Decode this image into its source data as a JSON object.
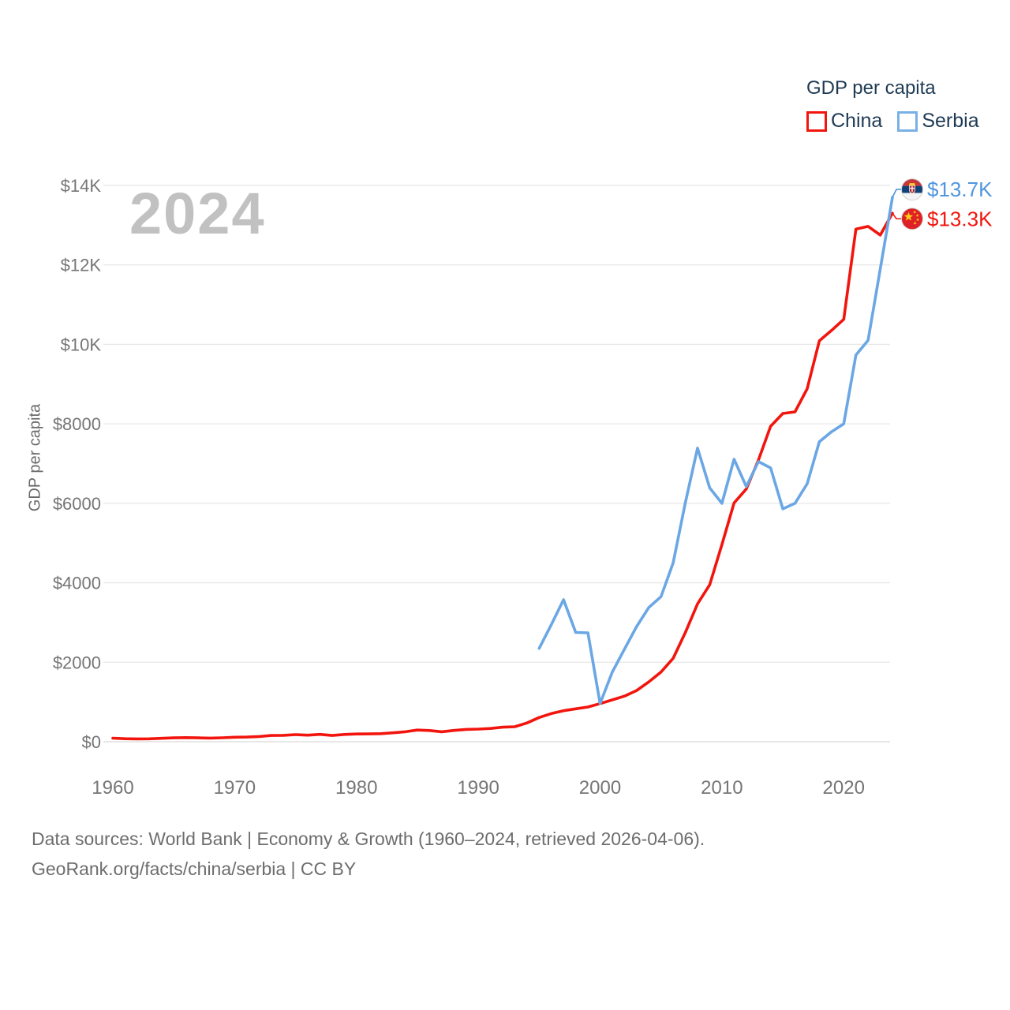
{
  "legend": {
    "title": "GDP per capita",
    "items": [
      {
        "label": "China",
        "color": "#f2150d"
      },
      {
        "label": "Serbia",
        "color": "#79b1e6"
      }
    ]
  },
  "watermark": "2024",
  "y_axis": {
    "title": "GDP per capita",
    "tick_labels": [
      "$0",
      "$2000",
      "$4000",
      "$6000",
      "$8000",
      "$10K",
      "$12K",
      "$14K"
    ],
    "tick_values": [
      0,
      2000,
      4000,
      6000,
      8000,
      10000,
      12000,
      14000
    ]
  },
  "x_axis": {
    "tick_labels": [
      "1960",
      "1970",
      "1980",
      "1990",
      "2000",
      "2010",
      "2020"
    ],
    "tick_values": [
      1960,
      1970,
      1980,
      1990,
      2000,
      2010,
      2020
    ]
  },
  "end_labels": [
    {
      "series": "Serbia",
      "value_label": "$13.7K",
      "color": "#4f96de",
      "flag": "serbia-flag"
    },
    {
      "series": "China",
      "value_label": "$13.3K",
      "color": "#f2150d",
      "flag": "china-flag"
    }
  ],
  "footer": {
    "line1": "Data sources: World Bank | Economy & Growth (1960–2024, retrieved 2026-04-06).",
    "line2": "GeoRank.org/facts/china/serbia | CC BY"
  },
  "chart_data": {
    "type": "line",
    "title": "GDP per capita",
    "ylabel": "GDP per capita",
    "ylim": [
      0,
      14000
    ],
    "xlim": [
      1960,
      2024
    ],
    "grid": "horizontal",
    "legend_position": "top-right",
    "series": [
      {
        "name": "China",
        "color": "#f2150d",
        "start_year": 1960,
        "x_step": 1,
        "values": [
          90,
          76,
          71,
          74,
          85,
          98,
          104,
          97,
          91,
          100,
          113,
          118,
          131,
          157,
          160,
          178,
          165,
          185,
          156,
          183,
          194,
          197,
          203,
          225,
          250,
          294,
          281,
          251,
          283,
          310,
          317,
          333,
          366,
          377,
          473,
          609,
          709,
          781,
          828,
          873,
          959,
          1053,
          1148,
          1288,
          1508,
          1753,
          2100,
          2750,
          3470,
          3950,
          4960,
          6010,
          6360,
          7090,
          7940,
          8260,
          8300,
          8880,
          10090,
          10350,
          10630,
          12900,
          12970,
          12750,
          13300
        ]
      },
      {
        "name": "Serbia",
        "color": "#6aa7e4",
        "start_year": 1995,
        "x_step": 1,
        "values": [
          2350,
          2950,
          3575,
          2750,
          2740,
          960,
          1750,
          2330,
          2900,
          3380,
          3650,
          4500,
          6020,
          7390,
          6390,
          6000,
          7110,
          6420,
          7050,
          6890,
          5860,
          6000,
          6490,
          7550,
          7800,
          8000,
          9730,
          10100,
          11900,
          13700
        ]
      }
    ]
  },
  "colors": {
    "axis_text": "#767676",
    "grid": "#e7e7e7",
    "baseline": "#dadada",
    "legend_text": "#1e3a54",
    "watermark": "#c1c1c1",
    "footer_text": "#6d6d6d",
    "serbia_flag_red": "#c6363c",
    "serbia_flag_blue": "#0f4076",
    "china_flag_red": "#de2126",
    "flag_star_gold": "#fdd117"
  }
}
